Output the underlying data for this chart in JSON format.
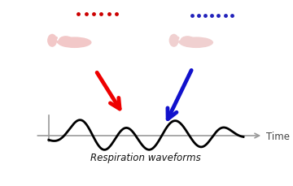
{
  "bg_color": "#ffffff",
  "figure_size": [
    3.6,
    2.3
  ],
  "dpi": 100,
  "waveform_color": "#000000",
  "axis_color": "#999999",
  "red_color": "#ee0000",
  "blue_color": "#1111cc",
  "dot_red": "#cc0000",
  "dot_blue": "#2222bb",
  "body_fill": "#f2c8c8",
  "body_fill2": "#f0d0d0",
  "body_edge": "none",
  "time_label": "Time",
  "wave_label": "Respiration waveforms",
  "label_fontsize": 8.5,
  "time_fontsize": 8.5
}
